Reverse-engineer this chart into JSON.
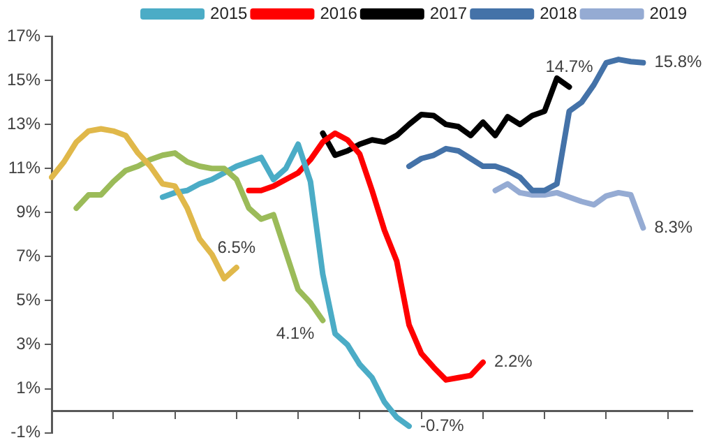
{
  "chart_data": {
    "type": "line",
    "categories": [
      null,
      null,
      null,
      null,
      null,
      null,
      null,
      null,
      null,
      null,
      null,
      null,
      null,
      null,
      null,
      null,
      null,
      null,
      null,
      null,
      null,
      null,
      null,
      null,
      null,
      null,
      null,
      null,
      null,
      null,
      null,
      null,
      null,
      null,
      null,
      null,
      null,
      null,
      null,
      null,
      null,
      null,
      null,
      null,
      null,
      null,
      null,
      null,
      null,
      null,
      null,
      null,
      null
    ],
    "ylim": [
      -1,
      17
    ],
    "yticks": [
      {
        "value": -1,
        "label": "-1%"
      },
      {
        "value": 1,
        "label": "1%"
      },
      {
        "value": 3,
        "label": "3%"
      },
      {
        "value": 5,
        "label": "5%"
      },
      {
        "value": 7,
        "label": "7%"
      },
      {
        "value": 9,
        "label": "9%"
      },
      {
        "value": 11,
        "label": "11%"
      },
      {
        "value": 13,
        "label": "13%"
      },
      {
        "value": 15,
        "label": "15%"
      },
      {
        "value": 17,
        "label": "17%"
      }
    ],
    "grid": false,
    "legend": "top right",
    "marker": "none",
    "line_style": "solid",
    "series": [
      {
        "color": "#e0b84a",
        "values": [
          10.6,
          11.3,
          12.2,
          12.7,
          12.8,
          12.7,
          12.5,
          11.7,
          11.1,
          10.3,
          10.2,
          9.2,
          7.8,
          7.1,
          6.0,
          6.5,
          null,
          null,
          null,
          null,
          null,
          null,
          null,
          null,
          null,
          null,
          null,
          null,
          null,
          null,
          null,
          null,
          null,
          null,
          null,
          null,
          null,
          null,
          null,
          null,
          null,
          null,
          null,
          null,
          null,
          null,
          null,
          null,
          null,
          null,
          null,
          null,
          null
        ],
        "value_labels": [
          null,
          null,
          null,
          null,
          null,
          null,
          null,
          null,
          null,
          null,
          null,
          null,
          null,
          null,
          null,
          "6.5%",
          null,
          null,
          null,
          null,
          null,
          null,
          null,
          null,
          null,
          null,
          null,
          null,
          null,
          null,
          null,
          null,
          null,
          null,
          null,
          null,
          null,
          null,
          null,
          null,
          null,
          null,
          null,
          null,
          null,
          null,
          null,
          null,
          null,
          null,
          null,
          null,
          null
        ]
      },
      {
        "color": "#9bbb59",
        "values": [
          null,
          null,
          9.2,
          9.8,
          9.8,
          10.4,
          10.9,
          11.1,
          11.4,
          11.6,
          11.7,
          11.3,
          11.1,
          11.0,
          11.0,
          10.5,
          9.2,
          8.7,
          8.9,
          7.2,
          5.5,
          4.9,
          4.1,
          null,
          null,
          null,
          null,
          null,
          null,
          null,
          null,
          null,
          null,
          null,
          null,
          null,
          null,
          null,
          null,
          null,
          null,
          null,
          null,
          null,
          null,
          null,
          null,
          null,
          null,
          null,
          null,
          null,
          null
        ],
        "value_labels": [
          null,
          null,
          null,
          null,
          null,
          null,
          null,
          null,
          null,
          null,
          null,
          null,
          null,
          null,
          null,
          null,
          null,
          null,
          null,
          null,
          null,
          null,
          "4.1%",
          null,
          null,
          null,
          null,
          null,
          null,
          null,
          null,
          null,
          null,
          null,
          null,
          null,
          null,
          null,
          null,
          null,
          null,
          null,
          null,
          null,
          null,
          null,
          null,
          null,
          null,
          null,
          null,
          null,
          null
        ]
      },
      {
        "name": "2015",
        "color": "#4bacc6",
        "values": [
          null,
          null,
          null,
          null,
          null,
          null,
          null,
          null,
          null,
          9.7,
          9.9,
          10.0,
          10.3,
          10.5,
          10.8,
          11.1,
          11.3,
          11.5,
          10.5,
          11.0,
          12.1,
          10.4,
          6.2,
          3.5,
          3.0,
          2.1,
          1.5,
          0.4,
          -0.3,
          -0.7,
          null,
          null,
          null,
          null,
          null,
          null,
          null,
          null,
          null,
          null,
          null,
          null,
          null,
          null,
          null,
          null,
          null,
          null,
          null,
          null,
          null,
          null,
          null
        ],
        "value_labels": [
          null,
          null,
          null,
          null,
          null,
          null,
          null,
          null,
          null,
          null,
          null,
          null,
          null,
          null,
          null,
          null,
          null,
          null,
          null,
          null,
          null,
          null,
          null,
          null,
          null,
          null,
          null,
          null,
          null,
          "-0.7%",
          null,
          null,
          null,
          null,
          null,
          null,
          null,
          null,
          null,
          null,
          null,
          null,
          null,
          null,
          null,
          null,
          null,
          null,
          null,
          null,
          null,
          null,
          null
        ]
      },
      {
        "name": "2016",
        "color": "#ff0000",
        "values": [
          null,
          null,
          null,
          null,
          null,
          null,
          null,
          null,
          null,
          null,
          null,
          null,
          null,
          null,
          null,
          null,
          10.0,
          10.0,
          10.2,
          10.5,
          10.8,
          11.4,
          12.2,
          12.6,
          12.3,
          11.65,
          10.0,
          8.2,
          6.8,
          3.9,
          2.6,
          1.97,
          1.4,
          1.5,
          1.6,
          2.2,
          null,
          null,
          null,
          null,
          null,
          null,
          null,
          null,
          null,
          null,
          null,
          null,
          null,
          null,
          null,
          null,
          null
        ],
        "value_labels": [
          null,
          null,
          null,
          null,
          null,
          null,
          null,
          null,
          null,
          null,
          null,
          null,
          null,
          null,
          null,
          null,
          null,
          null,
          null,
          null,
          null,
          null,
          null,
          null,
          null,
          null,
          null,
          null,
          null,
          null,
          null,
          null,
          null,
          null,
          null,
          "2.2%",
          null,
          null,
          null,
          null,
          null,
          null,
          null,
          null,
          null,
          null,
          null,
          null,
          null,
          null,
          null,
          null,
          null
        ]
      },
      {
        "name": "2017",
        "color": "#000000",
        "values": [
          null,
          null,
          null,
          null,
          null,
          null,
          null,
          null,
          null,
          null,
          null,
          null,
          null,
          null,
          null,
          null,
          null,
          null,
          null,
          null,
          null,
          null,
          12.6,
          11.6,
          11.8,
          12.1,
          12.3,
          12.2,
          12.5,
          13.0,
          13.45,
          13.4,
          13.0,
          12.9,
          12.5,
          13.1,
          12.5,
          13.35,
          13.0,
          13.4,
          13.6,
          15.1,
          14.7,
          null,
          null,
          null,
          null,
          null,
          null,
          null,
          null,
          null,
          null
        ],
        "value_labels": [
          null,
          null,
          null,
          null,
          null,
          null,
          null,
          null,
          null,
          null,
          null,
          null,
          null,
          null,
          null,
          null,
          null,
          null,
          null,
          null,
          null,
          null,
          null,
          null,
          null,
          null,
          null,
          null,
          null,
          null,
          null,
          null,
          null,
          null,
          null,
          null,
          null,
          null,
          null,
          null,
          null,
          null,
          "14.7%",
          null,
          null,
          null,
          null,
          null,
          null,
          null,
          null,
          null,
          null
        ]
      },
      {
        "name": "2018",
        "color": "#4472a8",
        "values": [
          null,
          null,
          null,
          null,
          null,
          null,
          null,
          null,
          null,
          null,
          null,
          null,
          null,
          null,
          null,
          null,
          null,
          null,
          null,
          null,
          null,
          null,
          null,
          null,
          null,
          null,
          null,
          null,
          null,
          11.1,
          11.45,
          11.6,
          11.9,
          11.8,
          11.45,
          11.1,
          11.1,
          10.9,
          10.6,
          10.0,
          10.0,
          10.3,
          13.6,
          14.0,
          14.8,
          15.8,
          15.95,
          15.85,
          15.8,
          null,
          null,
          null,
          null
        ],
        "value_labels": [
          null,
          null,
          null,
          null,
          null,
          null,
          null,
          null,
          null,
          null,
          null,
          null,
          null,
          null,
          null,
          null,
          null,
          null,
          null,
          null,
          null,
          null,
          null,
          null,
          null,
          null,
          null,
          null,
          null,
          null,
          null,
          null,
          null,
          null,
          null,
          null,
          null,
          null,
          null,
          null,
          null,
          null,
          null,
          null,
          null,
          null,
          null,
          null,
          "15.8%",
          null,
          null,
          null,
          null
        ]
      },
      {
        "name": "2019",
        "color": "#95abd3",
        "values": [
          null,
          null,
          null,
          null,
          null,
          null,
          null,
          null,
          null,
          null,
          null,
          null,
          null,
          null,
          null,
          null,
          null,
          null,
          null,
          null,
          null,
          null,
          null,
          null,
          null,
          null,
          null,
          null,
          null,
          null,
          null,
          null,
          null,
          null,
          null,
          null,
          10.0,
          10.3,
          9.9,
          9.8,
          9.8,
          9.9,
          9.7,
          9.5,
          9.35,
          9.75,
          9.9,
          9.8,
          8.3,
          null,
          null,
          null,
          null
        ],
        "value_labels": [
          null,
          null,
          null,
          null,
          null,
          null,
          null,
          null,
          null,
          null,
          null,
          null,
          null,
          null,
          null,
          null,
          null,
          null,
          null,
          null,
          null,
          null,
          null,
          null,
          null,
          null,
          null,
          null,
          null,
          null,
          null,
          null,
          null,
          null,
          null,
          null,
          null,
          null,
          null,
          null,
          null,
          null,
          null,
          null,
          null,
          null,
          null,
          null,
          "8.3%",
          null,
          null,
          null,
          null
        ]
      }
    ]
  }
}
